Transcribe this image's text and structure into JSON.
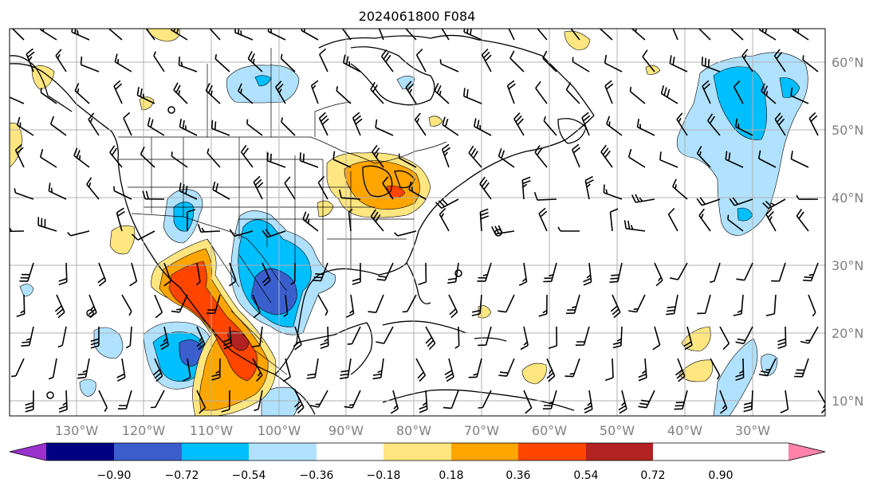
{
  "title": "2024061800 F084",
  "longitude_labels": [
    "130°W",
    "120°W",
    "110°W",
    "100°W",
    "90°W",
    "80°W",
    "70°W",
    "60°W",
    "50°W",
    "40°W",
    "30°W"
  ],
  "latitude_labels": [
    "60°N",
    "50°N",
    "40°N",
    "30°N",
    "20°N",
    "10°N"
  ],
  "colorbar": {
    "tick_labels": [
      "−0.90",
      "−0.72",
      "−0.54",
      "−0.36",
      "−0.18",
      "0.18",
      "0.36",
      "0.54",
      "0.72",
      "0.90"
    ],
    "colors": [
      "#9932cc",
      "#000080",
      "#3a5fcd",
      "#00bfff",
      "#b0e2ff",
      "#ffffff",
      "#ffe680",
      "#ffa500",
      "#ff4500",
      "#b22222",
      "#ff82ab"
    ]
  },
  "field_colors": {
    "neg_1": "#b0e2ff",
    "neg_2": "#00bfff",
    "neg_3": "#3a5fcd",
    "pos_1": "#ffe680",
    "pos_2": "#ffa500",
    "pos_3": "#ff4500",
    "pos_4": "#b22222"
  }
}
